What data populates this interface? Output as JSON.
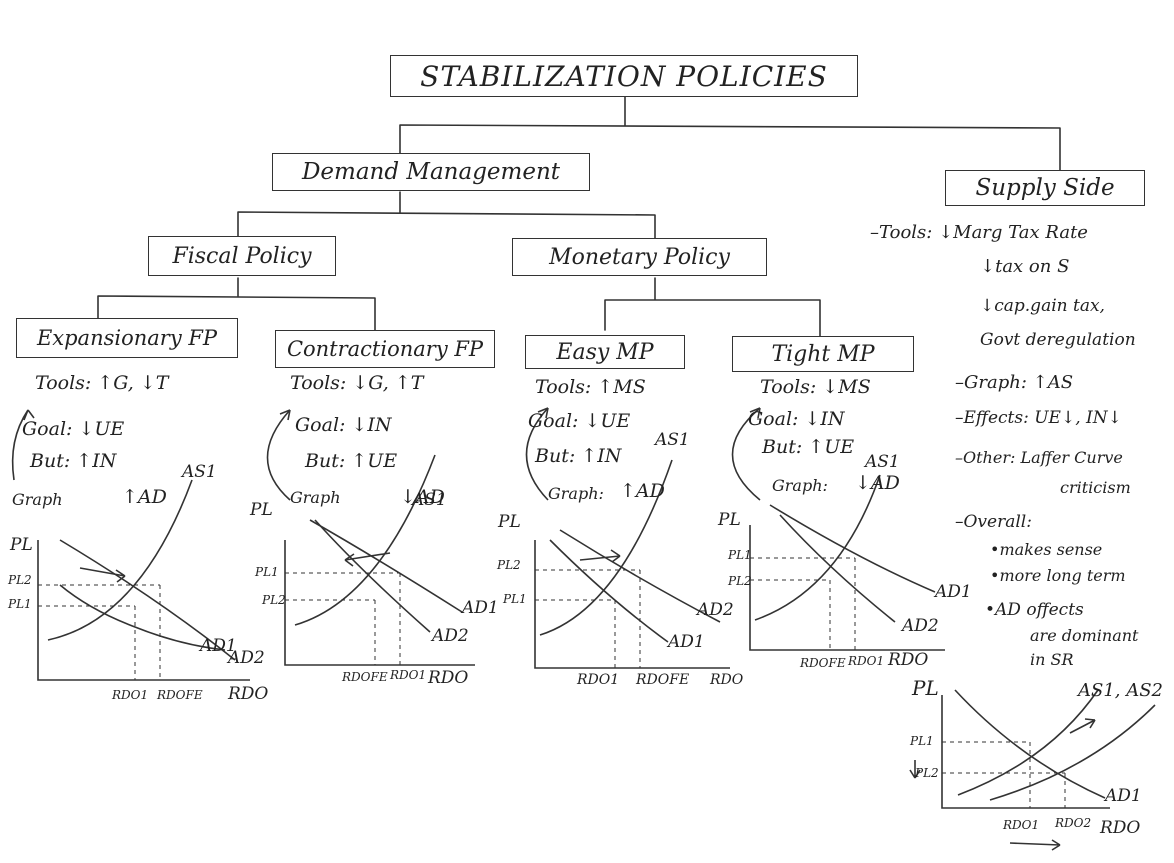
{
  "title": "STABILIZATION POLICIES",
  "demand": "Demand Management",
  "supply": "Supply Side",
  "fiscal": "Fiscal Policy",
  "monetary": "Monetary Policy",
  "exp": {
    "title": "Expansionary FP",
    "tools": "Tools: ↑G, ↓T",
    "goal": "Goal: ↓UE",
    "but": "But: ↑IN",
    "graph": "Graph",
    "graph_val": "↑AD",
    "pl": "PL",
    "pl2": "PL2",
    "pl1": "PL1",
    "as": "AS1",
    "ad2": "AD2",
    "ad1": "AD1",
    "rdo1": "RDO1",
    "rdofe": "RDOFE",
    "rdo": "RDO"
  },
  "con": {
    "title": "Contractionary FP",
    "tools": "Tools: ↓G, ↑T",
    "goal": "Goal: ↓IN",
    "but": "But: ↑UE",
    "graph": "Graph",
    "graph_val": "↓AD",
    "pl": "PL",
    "pl1": "PL1",
    "pl2": "PL2",
    "as": "AS1",
    "ad1": "AD1",
    "ad2": "AD2",
    "rdofe": "RDOFE",
    "rdo1": "RDO1",
    "rdo": "RDO"
  },
  "easy": {
    "title": "Easy MP",
    "tools": "Tools: ↑MS",
    "goal": "Goal: ↓UE",
    "but": "But: ↑IN",
    "graph": "Graph:",
    "graph_val": "↑AD",
    "pl": "PL",
    "pl2": "PL2",
    "pl1": "PL1",
    "as": "AS1",
    "ad2": "AD2",
    "ad1": "AD1",
    "rdo1": "RDO1",
    "rdofe": "RDOFE",
    "rdo": "RDO"
  },
  "tight": {
    "title": "Tight MP",
    "tools": "Tools: ↓MS",
    "goal": "Goal: ↓IN",
    "but": "But: ↑UE",
    "graph": "Graph:",
    "graph_val": "↓AD",
    "pl": "PL",
    "pl1": "PL1",
    "pl2": "PL2",
    "as": "AS1",
    "ad1": "AD1",
    "ad2": "AD2",
    "rdo": "RDOFE",
    "rdo1": "RDO1",
    "rdo_axis": "RDO"
  },
  "ss": {
    "tools1": "–Tools: ↓Marg Tax Rate",
    "tools2": "↓tax on S",
    "tools3": "↓cap.gain tax,",
    "tools4": "Govt deregulation",
    "graph": "–Graph: ↑AS",
    "effects": "–Effects: UE↓, IN↓",
    "other1": "–Other: Laffer Curve",
    "other2": "criticism",
    "overall": "–Overall:",
    "o1": "•makes sense",
    "o2": "•more long term",
    "o3": "•AD offects",
    "o4": "are dominant",
    "o5": "in SR",
    "g_pl": "PL",
    "g_pl1": "PL1",
    "g_pl2": "PL2",
    "g_as": "AS1, AS2",
    "g_ad": "AD1",
    "g_rdo1": "RDO1",
    "g_rdo2": "RDO2",
    "g_rdo": "RDO"
  }
}
